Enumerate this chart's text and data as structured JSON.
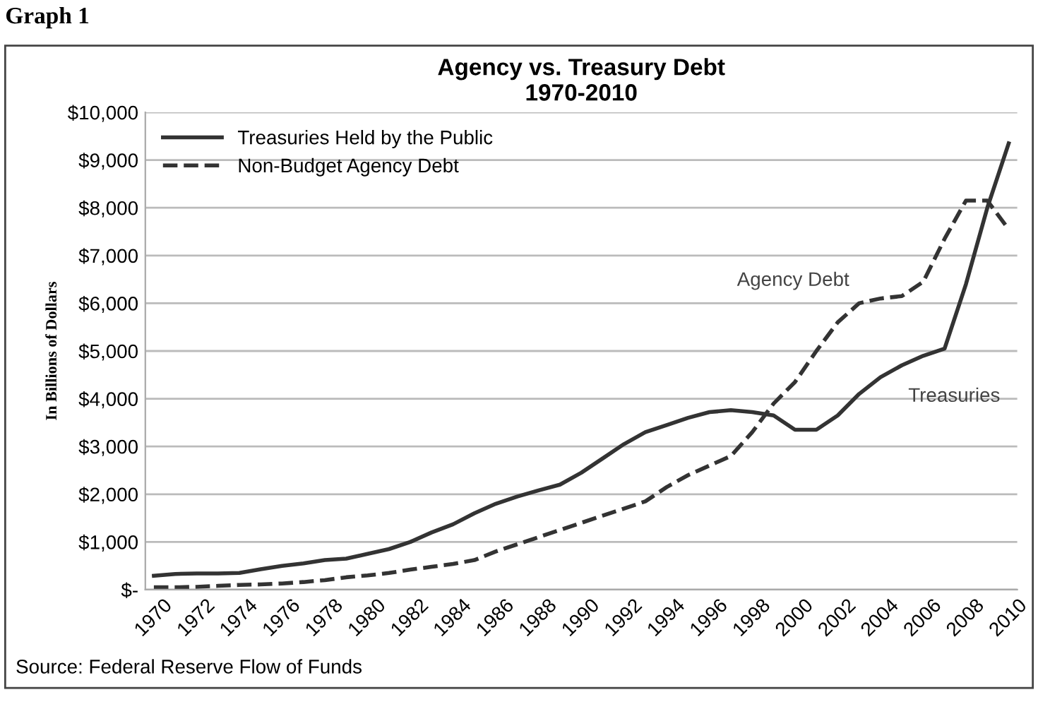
{
  "chart_data": {
    "type": "line",
    "title": "Agency vs. Treasury Debt\n1970-2010",
    "ylabel": "In Billions of Dollars",
    "x": [
      1970,
      1971,
      1972,
      1973,
      1974,
      1975,
      1976,
      1977,
      1978,
      1979,
      1980,
      1981,
      1982,
      1983,
      1984,
      1985,
      1986,
      1987,
      1988,
      1989,
      1990,
      1991,
      1992,
      1993,
      1994,
      1995,
      1996,
      1997,
      1998,
      1999,
      2000,
      2001,
      2002,
      2003,
      2004,
      2005,
      2006,
      2007,
      2008,
      2009,
      2010
    ],
    "series": [
      {
        "name": "Treasuries Held by the Public",
        "color": "#333333",
        "line_style": "solid",
        "values": [
          290,
          330,
          340,
          340,
          350,
          430,
          500,
          550,
          620,
          650,
          750,
          850,
          1000,
          1200,
          1370,
          1600,
          1800,
          1950,
          2080,
          2200,
          2450,
          2750,
          3050,
          3300,
          3450,
          3600,
          3720,
          3760,
          3720,
          3650,
          3350,
          3350,
          3650,
          4100,
          4450,
          4700,
          4900,
          5050,
          6400,
          8000,
          9350
        ]
      },
      {
        "name": "Non-Budget Agency Debt",
        "color": "#333333",
        "line_style": "dashed",
        "values": [
          50,
          50,
          60,
          80,
          100,
          110,
          130,
          160,
          200,
          260,
          300,
          350,
          420,
          480,
          540,
          620,
          800,
          950,
          1100,
          1250,
          1400,
          1550,
          1700,
          1850,
          2150,
          2400,
          2600,
          2800,
          3300,
          3900,
          4350,
          5000,
          5600,
          6000,
          6100,
          6150,
          6450,
          7350,
          8150,
          8150,
          7550
        ]
      }
    ],
    "xlim": [
      1969.6,
      2010.4
    ],
    "xticks": [
      1970,
      1972,
      1974,
      1976,
      1978,
      1980,
      1982,
      1984,
      1986,
      1988,
      1990,
      1992,
      1994,
      1996,
      1998,
      2000,
      2002,
      2004,
      2006,
      2008,
      2010
    ],
    "ylim": [
      0,
      10000
    ],
    "yticks": [
      {
        "value": 0,
        "label": "$-"
      },
      {
        "value": 1000,
        "label": "$1,000"
      },
      {
        "value": 2000,
        "label": "$2,000"
      },
      {
        "value": 3000,
        "label": "$3,000"
      },
      {
        "value": 4000,
        "label": "$4,000"
      },
      {
        "value": 5000,
        "label": "$5,000"
      },
      {
        "value": 6000,
        "label": "$6,000"
      },
      {
        "value": 7000,
        "label": "$7,000"
      },
      {
        "value": 8000,
        "label": "$8,000"
      },
      {
        "value": 9000,
        "label": "$9,000"
      },
      {
        "value": 10000,
        "label": "$10,000"
      }
    ],
    "grid": "y",
    "legend": "top left",
    "annotations": [
      "Agency Debt",
      "Treasuries",
      "Graph 1",
      "Source: Federal Reserve Flow of Funds"
    ]
  }
}
